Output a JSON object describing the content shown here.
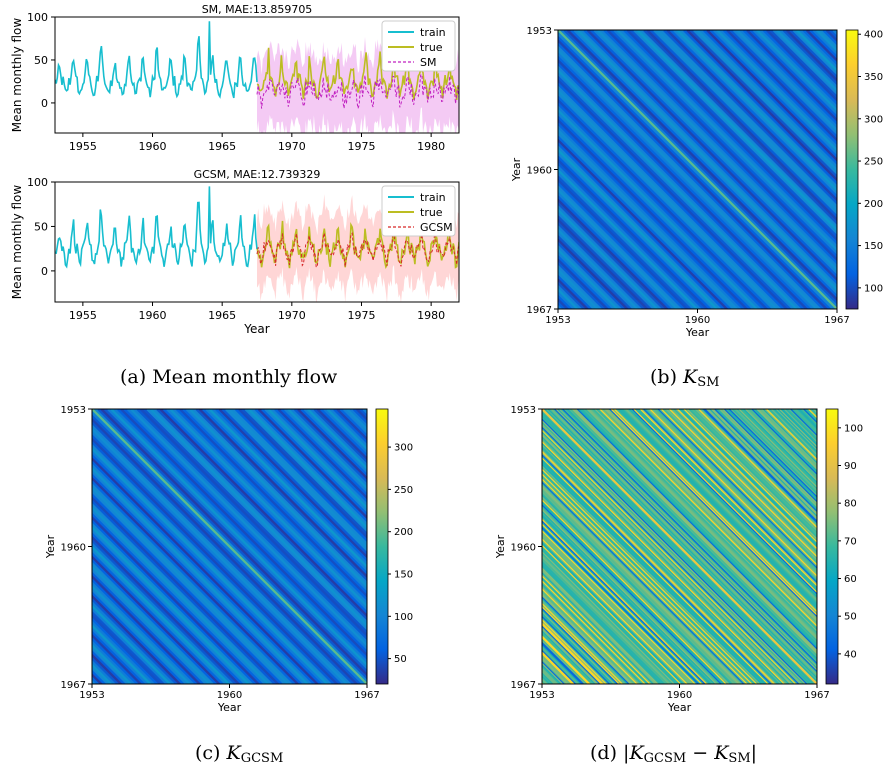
{
  "captions": {
    "a": "(a) Mean monthly flow",
    "b_prefix": "(b)",
    "b_sym": "K",
    "b_sub": "SM",
    "c_prefix": "(c)",
    "c_sym": "K",
    "c_sub": "GCSM",
    "d_prefix": "(d)",
    "d_open": "|",
    "d_sym1": "K",
    "d_sub1": "GCSM",
    "d_minus": " − ",
    "d_sym2": "K",
    "d_sub2": "SM",
    "d_close": "|"
  },
  "colors": {
    "train": "#17becf",
    "true": "#bcbd22",
    "sm": "#c020c0",
    "sm_band": "#f0b8f0",
    "gcsm": "#d62728",
    "gcsm_band": "#ffc8c8",
    "parula": [
      "#352a87",
      "#0363e1",
      "#1485d4",
      "#06a7c6",
      "#38b99e",
      "#92bf73",
      "#d9ba56",
      "#fcce2e",
      "#f9fb0e"
    ]
  },
  "chart_data": [
    {
      "type": "line",
      "title": "SM, MAE:13.859705",
      "xlabel": "",
      "ylabel": "Mean monthly flow",
      "xlim": [
        1953,
        1982
      ],
      "ylim": [
        -35,
        100
      ],
      "xticks": [
        "1955",
        "1960",
        "1965",
        "1970",
        "1975",
        "1980"
      ],
      "yticks": [
        "0",
        "50",
        "100"
      ],
      "legend": {
        "placement": "top-right",
        "entries": [
          "train",
          "true",
          "SM"
        ]
      },
      "series": [
        {
          "name": "train",
          "x_range": [
            1953,
            1967.5
          ],
          "monthly_values": "seasonal, mean ~30, peaks 45-95 (max ~95 in 1964)"
        },
        {
          "name": "true",
          "x_range": [
            1967.5,
            1982
          ],
          "monthly_values": "seasonal, mean ~25, peaks 45-65"
        },
        {
          "name": "SM",
          "x_range": [
            1967.5,
            1982
          ],
          "monthly_values": "prediction oscillating 0-55 with wide uncertainty band (-30 to 100)"
        }
      ]
    },
    {
      "type": "line",
      "title": "GCSM, MAE:12.739329",
      "xlabel": "Year",
      "ylabel": "Mean monthly flow",
      "xlim": [
        1953,
        1982
      ],
      "ylim": [
        -35,
        100
      ],
      "xticks": [
        "1955",
        "1960",
        "1965",
        "1970",
        "1975",
        "1980"
      ],
      "yticks": [
        "0",
        "50",
        "100"
      ],
      "legend": {
        "placement": "top-right",
        "entries": [
          "train",
          "true",
          "GCSM"
        ]
      },
      "series": [
        {
          "name": "train",
          "x_range": [
            1953,
            1967.5
          ]
        },
        {
          "name": "true",
          "x_range": [
            1967.5,
            1982
          ]
        },
        {
          "name": "GCSM",
          "x_range": [
            1967.5,
            1982
          ],
          "monthly_values": "prediction oscillating 5-65 with uncertainty band (-30 to 90)"
        }
      ]
    },
    {
      "type": "heatmap",
      "xlabel": "Year",
      "ylabel": "Year",
      "xticks": [
        "1953",
        "1960",
        "1967"
      ],
      "yticks": [
        "1953",
        "1960",
        "1967"
      ],
      "colorbar": {
        "min": 75,
        "max": 405,
        "ticks": [
          "100",
          "150",
          "200",
          "250",
          "300",
          "350",
          "400"
        ]
      },
      "pattern": "stationary kernel; diagonal stripes, yearly period, bright main diagonal"
    },
    {
      "type": "heatmap",
      "xlabel": "Year",
      "ylabel": "Year",
      "xticks": [
        "1953",
        "1960",
        "1967"
      ],
      "yticks": [
        "1953",
        "1960",
        "1967"
      ],
      "colorbar": {
        "min": 20,
        "max": 345,
        "ticks": [
          "50",
          "100",
          "150",
          "200",
          "250",
          "300"
        ]
      },
      "pattern": "stationary kernel; diagonal stripes, yearly period, bright main diagonal"
    },
    {
      "type": "heatmap",
      "xlabel": "Year",
      "ylabel": "Year",
      "xticks": [
        "1953",
        "1960",
        "1967"
      ],
      "yticks": [
        "1953",
        "1960",
        "1967"
      ],
      "colorbar": {
        "min": 32,
        "max": 105,
        "ticks": [
          "40",
          "50",
          "60",
          "70",
          "80",
          "90",
          "100"
        ]
      },
      "pattern": "dense diagonal stripes of varying width, mostly cyan-green with yellow and blue lines"
    }
  ]
}
